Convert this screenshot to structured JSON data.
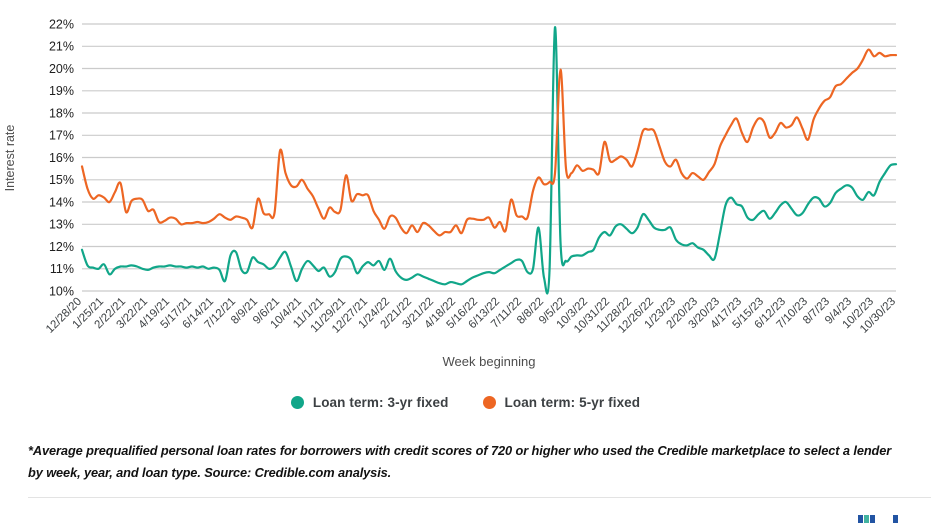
{
  "chart_data": {
    "type": "line",
    "title": "",
    "xlabel": "Week beginning",
    "ylabel": "Interest rate",
    "ylim": [
      10,
      22
    ],
    "y_ticks_percent": [
      22,
      21,
      20,
      19,
      18,
      17,
      16,
      15,
      14,
      13,
      12,
      11,
      10
    ],
    "grid": "horizontal",
    "legend_position": "bottom",
    "x_label_every_n_points": 4,
    "x_tick_labels": [
      "12/28/20",
      "1/25/21",
      "2/22/21",
      "3/22/21",
      "4/19/21",
      "5/17/21",
      "6/14/21",
      "7/12/21",
      "8/9/21",
      "9/6/21",
      "10/4/21",
      "11/1/21",
      "11/29/21",
      "12/27/21",
      "1/24/22",
      "2/21/22",
      "3/21/22",
      "4/18/22",
      "5/16/22",
      "6/13/22",
      "7/11/22",
      "8/8/22",
      "9/5/22",
      "10/3/22",
      "10/31/22",
      "11/28/22",
      "12/26/22",
      "1/23/23",
      "2/20/23",
      "3/20/23",
      "4/17/23",
      "5/15/23",
      "6/12/23",
      "7/10/23",
      "8/7/23",
      "9/4/23",
      "10/2/23",
      "10/30/23"
    ],
    "series": [
      {
        "name": "Loan term: 3-yr fixed",
        "color": "#11A689",
        "values": [
          11.85,
          11.15,
          11.05,
          11.0,
          11.2,
          10.75,
          11.0,
          11.1,
          11.1,
          11.15,
          11.1,
          11.0,
          10.95,
          11.05,
          11.1,
          11.1,
          11.15,
          11.1,
          11.1,
          11.05,
          11.1,
          11.05,
          11.1,
          11.0,
          11.05,
          10.95,
          10.45,
          11.6,
          11.75,
          10.95,
          10.85,
          11.5,
          11.3,
          11.2,
          11.0,
          11.1,
          11.5,
          11.75,
          11.1,
          10.45,
          11.0,
          11.35,
          11.15,
          10.9,
          11.05,
          10.65,
          10.85,
          11.45,
          11.55,
          11.4,
          10.8,
          11.1,
          11.3,
          11.15,
          11.35,
          10.95,
          11.45,
          10.9,
          10.6,
          10.5,
          10.6,
          10.75,
          10.65,
          10.55,
          10.45,
          10.35,
          10.3,
          10.4,
          10.35,
          10.3,
          10.45,
          10.6,
          10.7,
          10.8,
          10.85,
          10.8,
          10.95,
          11.1,
          11.25,
          11.4,
          11.35,
          10.85,
          11.0,
          12.85,
          10.6,
          10.9,
          21.85,
          12.2,
          11.35,
          11.55,
          11.6,
          11.6,
          11.75,
          11.85,
          12.4,
          12.65,
          12.5,
          12.9,
          13.0,
          12.8,
          12.6,
          12.85,
          13.45,
          13.2,
          12.85,
          12.75,
          12.75,
          12.85,
          12.3,
          12.1,
          12.05,
          12.15,
          11.95,
          11.85,
          11.6,
          11.45,
          12.6,
          13.85,
          14.2,
          13.9,
          13.8,
          13.3,
          13.2,
          13.45,
          13.6,
          13.25,
          13.5,
          13.85,
          14.0,
          13.7,
          13.4,
          13.5,
          13.9,
          14.2,
          14.15,
          13.8,
          13.95,
          14.4,
          14.6,
          14.75,
          14.65,
          14.25,
          14.1,
          14.45,
          14.3,
          14.9,
          15.3,
          15.65,
          15.7
        ]
      },
      {
        "name": "Loan term: 5-yr fixed",
        "color": "#ED6623",
        "values": [
          15.6,
          14.6,
          14.15,
          14.3,
          14.2,
          14.0,
          14.45,
          14.85,
          13.55,
          14.05,
          14.15,
          14.1,
          13.6,
          13.65,
          13.1,
          13.15,
          13.3,
          13.25,
          13.0,
          13.05,
          13.05,
          13.1,
          13.05,
          13.1,
          13.25,
          13.45,
          13.3,
          13.2,
          13.35,
          13.3,
          13.2,
          12.85,
          14.15,
          13.5,
          13.45,
          13.5,
          16.3,
          15.3,
          14.75,
          14.7,
          15.0,
          14.6,
          14.25,
          13.7,
          13.25,
          13.75,
          13.55,
          13.65,
          15.2,
          14.05,
          14.35,
          14.3,
          14.3,
          13.6,
          13.2,
          12.8,
          13.35,
          13.3,
          12.85,
          12.6,
          12.95,
          12.65,
          13.05,
          12.95,
          12.7,
          12.5,
          12.65,
          12.65,
          12.95,
          12.6,
          13.2,
          13.25,
          13.2,
          13.2,
          13.3,
          12.85,
          13.1,
          12.7,
          14.1,
          13.4,
          13.35,
          13.3,
          14.5,
          15.1,
          14.8,
          14.9,
          15.3,
          19.95,
          15.5,
          15.3,
          15.65,
          15.4,
          15.5,
          15.45,
          15.3,
          16.7,
          15.85,
          15.9,
          16.05,
          15.9,
          15.6,
          16.3,
          17.2,
          17.25,
          17.2,
          16.5,
          15.8,
          15.6,
          15.9,
          15.3,
          15.05,
          15.3,
          15.15,
          15.0,
          15.35,
          15.7,
          16.5,
          17.0,
          17.45,
          17.75,
          17.1,
          16.7,
          17.35,
          17.75,
          17.6,
          16.9,
          17.1,
          17.55,
          17.35,
          17.45,
          17.8,
          17.3,
          16.8,
          17.7,
          18.2,
          18.55,
          18.7,
          19.2,
          19.3,
          19.55,
          19.8,
          20.0,
          20.4,
          20.85,
          20.55,
          20.7,
          20.55,
          20.6,
          20.6
        ]
      }
    ]
  },
  "footnote": "*Average prequalified personal loan rates for borrowers with credit scores of 720 or higher who used the Credible marketplace to select a lender by week, year, and loan type. Source: Credible.com analysis.",
  "colors": {
    "gridline": "#cbcbcb",
    "y_tick_text": "#1f1f1f",
    "x_tick_text": "#3c4043",
    "axis_title_text": "#4d4d4d",
    "series_3yr": "#11A689",
    "series_5yr": "#ED6623",
    "logo_navy": "#2254A3",
    "logo_teal": "#43B3A0"
  }
}
